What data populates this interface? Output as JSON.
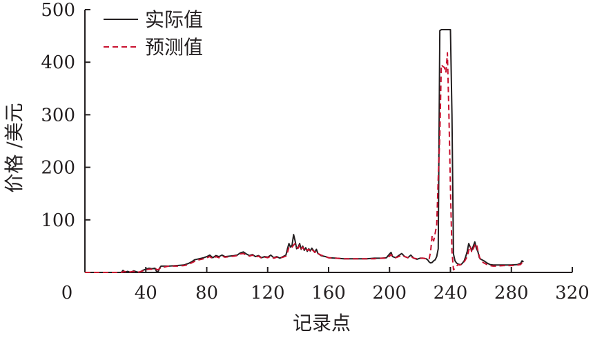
{
  "chart_data": {
    "type": "line",
    "title": "",
    "xlabel": "记录点",
    "ylabel": "价格 /美元",
    "xlim": [
      0,
      320
    ],
    "ylim": [
      0,
      500
    ],
    "xticks": [
      {
        "value": 0,
        "label": "0"
      },
      {
        "value": 40,
        "label": "40"
      },
      {
        "value": 80,
        "label": "80"
      },
      {
        "value": 120,
        "label": "120"
      },
      {
        "value": 160,
        "label": "160"
      },
      {
        "value": 200,
        "label": "200"
      },
      {
        "value": 240,
        "label": "240"
      },
      {
        "value": 280,
        "label": "280"
      },
      {
        "value": 320,
        "label": "320"
      }
    ],
    "yticks": [
      {
        "value": 100,
        "label": "100"
      },
      {
        "value": 200,
        "label": "200"
      },
      {
        "value": 300,
        "label": "300"
      },
      {
        "value": 400,
        "label": "400"
      },
      {
        "value": 500,
        "label": "500"
      }
    ],
    "grid": false,
    "legend_position": "top-left",
    "series": [
      {
        "name": "实际值",
        "color": "#231f20",
        "dash": "solid",
        "points": [
          [
            0,
            0
          ],
          [
            10,
            0
          ],
          [
            20,
            0
          ],
          [
            24,
            0
          ],
          [
            25,
            4
          ],
          [
            26,
            0
          ],
          [
            28,
            2
          ],
          [
            30,
            0
          ],
          [
            32,
            3
          ],
          [
            34,
            1
          ],
          [
            36,
            0
          ],
          [
            38,
            4
          ],
          [
            40,
            6
          ],
          [
            42,
            8
          ],
          [
            44,
            7
          ],
          [
            46,
            8
          ],
          [
            47,
            2
          ],
          [
            48,
            1
          ],
          [
            49,
            8
          ],
          [
            50,
            12
          ],
          [
            55,
            12
          ],
          [
            60,
            13
          ],
          [
            65,
            14
          ],
          [
            68,
            17
          ],
          [
            70,
            20
          ],
          [
            72,
            24
          ],
          [
            75,
            26
          ],
          [
            78,
            28
          ],
          [
            80,
            30
          ],
          [
            82,
            33
          ],
          [
            84,
            28
          ],
          [
            86,
            32
          ],
          [
            88,
            30
          ],
          [
            90,
            33
          ],
          [
            92,
            30
          ],
          [
            95,
            31
          ],
          [
            98,
            32
          ],
          [
            100,
            33
          ],
          [
            102,
            37
          ],
          [
            104,
            39
          ],
          [
            106,
            35
          ],
          [
            108,
            32
          ],
          [
            110,
            34
          ],
          [
            112,
            30
          ],
          [
            114,
            32
          ],
          [
            116,
            28
          ],
          [
            118,
            30
          ],
          [
            120,
            29
          ],
          [
            122,
            33
          ],
          [
            124,
            28
          ],
          [
            126,
            30
          ],
          [
            128,
            27
          ],
          [
            130,
            30
          ],
          [
            132,
            33
          ],
          [
            133,
            45
          ],
          [
            134,
            55
          ],
          [
            135,
            48
          ],
          [
            136,
            52
          ],
          [
            137,
            72
          ],
          [
            138,
            60
          ],
          [
            139,
            45
          ],
          [
            140,
            48
          ],
          [
            141,
            55
          ],
          [
            142,
            44
          ],
          [
            143,
            50
          ],
          [
            144,
            42
          ],
          [
            145,
            47
          ],
          [
            146,
            40
          ],
          [
            147,
            45
          ],
          [
            148,
            41
          ],
          [
            149,
            46
          ],
          [
            150,
            42
          ],
          [
            151,
            38
          ],
          [
            152,
            44
          ],
          [
            153,
            36
          ],
          [
            155,
            32
          ],
          [
            158,
            30
          ],
          [
            160,
            28
          ],
          [
            165,
            27
          ],
          [
            170,
            26
          ],
          [
            175,
            26
          ],
          [
            180,
            26
          ],
          [
            185,
            26
          ],
          [
            190,
            27
          ],
          [
            195,
            27
          ],
          [
            198,
            28
          ],
          [
            200,
            35
          ],
          [
            201,
            38
          ],
          [
            202,
            30
          ],
          [
            204,
            28
          ],
          [
            206,
            32
          ],
          [
            208,
            36
          ],
          [
            210,
            30
          ],
          [
            212,
            28
          ],
          [
            214,
            33
          ],
          [
            216,
            27
          ],
          [
            218,
            25
          ],
          [
            220,
            27
          ],
          [
            222,
            27
          ],
          [
            224,
            26
          ],
          [
            225,
            24
          ],
          [
            226,
            20
          ],
          [
            227,
            18
          ],
          [
            228,
            19
          ],
          [
            229,
            22
          ],
          [
            230,
            24
          ],
          [
            231,
            30
          ],
          [
            232,
            45
          ],
          [
            233,
            460
          ],
          [
            234,
            462
          ],
          [
            235,
            462
          ],
          [
            236,
            462
          ],
          [
            237,
            462
          ],
          [
            238,
            462
          ],
          [
            239,
            462
          ],
          [
            240,
            462
          ],
          [
            241,
            300
          ],
          [
            242,
            35
          ],
          [
            243,
            22
          ],
          [
            244,
            18
          ],
          [
            245,
            16
          ],
          [
            246,
            15
          ],
          [
            247,
            15
          ],
          [
            248,
            18
          ],
          [
            249,
            22
          ],
          [
            250,
            30
          ],
          [
            251,
            40
          ],
          [
            252,
            55
          ],
          [
            253,
            48
          ],
          [
            254,
            42
          ],
          [
            255,
            50
          ],
          [
            256,
            58
          ],
          [
            257,
            46
          ],
          [
            258,
            40
          ],
          [
            259,
            28
          ],
          [
            260,
            25
          ],
          [
            262,
            22
          ],
          [
            264,
            18
          ],
          [
            266,
            15
          ],
          [
            268,
            14
          ],
          [
            270,
            14
          ],
          [
            275,
            14
          ],
          [
            280,
            14
          ],
          [
            284,
            15
          ],
          [
            286,
            17
          ],
          [
            287,
            22
          ],
          [
            288,
            20
          ]
        ]
      },
      {
        "name": "预测值",
        "color": "#c8102e",
        "dash": "dashed",
        "points": [
          [
            0,
            0
          ],
          [
            10,
            0
          ],
          [
            20,
            0
          ],
          [
            24,
            0
          ],
          [
            26,
            2
          ],
          [
            28,
            0
          ],
          [
            30,
            1
          ],
          [
            32,
            2
          ],
          [
            34,
            0
          ],
          [
            36,
            1
          ],
          [
            38,
            3
          ],
          [
            40,
            5
          ],
          [
            42,
            6
          ],
          [
            44,
            6
          ],
          [
            46,
            7
          ],
          [
            48,
            5
          ],
          [
            50,
            9
          ],
          [
            55,
            12
          ],
          [
            60,
            12
          ],
          [
            65,
            13
          ],
          [
            68,
            15
          ],
          [
            70,
            18
          ],
          [
            72,
            21
          ],
          [
            75,
            24
          ],
          [
            78,
            26
          ],
          [
            80,
            28
          ],
          [
            82,
            30
          ],
          [
            84,
            26
          ],
          [
            86,
            30
          ],
          [
            88,
            28
          ],
          [
            90,
            31
          ],
          [
            92,
            29
          ],
          [
            95,
            30
          ],
          [
            98,
            31
          ],
          [
            100,
            32
          ],
          [
            102,
            35
          ],
          [
            104,
            36
          ],
          [
            106,
            33
          ],
          [
            108,
            31
          ],
          [
            110,
            33
          ],
          [
            112,
            29
          ],
          [
            114,
            31
          ],
          [
            116,
            27
          ],
          [
            118,
            29
          ],
          [
            120,
            28
          ],
          [
            122,
            31
          ],
          [
            124,
            27
          ],
          [
            126,
            29
          ],
          [
            128,
            27
          ],
          [
            130,
            29
          ],
          [
            132,
            31
          ],
          [
            133,
            38
          ],
          [
            134,
            48
          ],
          [
            135,
            46
          ],
          [
            136,
            48
          ],
          [
            137,
            52
          ],
          [
            138,
            55
          ],
          [
            139,
            48
          ],
          [
            140,
            46
          ],
          [
            141,
            52
          ],
          [
            142,
            45
          ],
          [
            143,
            48
          ],
          [
            144,
            43
          ],
          [
            145,
            46
          ],
          [
            146,
            42
          ],
          [
            147,
            44
          ],
          [
            148,
            40
          ],
          [
            149,
            44
          ],
          [
            150,
            41
          ],
          [
            151,
            38
          ],
          [
            152,
            41
          ],
          [
            153,
            36
          ],
          [
            155,
            33
          ],
          [
            158,
            30
          ],
          [
            160,
            28
          ],
          [
            165,
            27
          ],
          [
            170,
            26
          ],
          [
            175,
            26
          ],
          [
            180,
            26
          ],
          [
            185,
            26
          ],
          [
            190,
            26
          ],
          [
            195,
            27
          ],
          [
            198,
            27
          ],
          [
            200,
            31
          ],
          [
            201,
            34
          ],
          [
            202,
            30
          ],
          [
            204,
            28
          ],
          [
            206,
            30
          ],
          [
            208,
            33
          ],
          [
            210,
            30
          ],
          [
            212,
            28
          ],
          [
            214,
            30
          ],
          [
            216,
            27
          ],
          [
            218,
            26
          ],
          [
            220,
            27
          ],
          [
            222,
            27
          ],
          [
            224,
            26
          ],
          [
            226,
            25
          ],
          [
            227,
            40
          ],
          [
            228,
            70
          ],
          [
            229,
            60
          ],
          [
            230,
            75
          ],
          [
            231,
            90
          ],
          [
            232,
            180
          ],
          [
            233,
            260
          ],
          [
            234,
            395
          ],
          [
            235,
            392
          ],
          [
            236,
            390
          ],
          [
            237,
            380
          ],
          [
            238,
            418
          ],
          [
            239,
            300
          ],
          [
            240,
            160
          ],
          [
            241,
            40
          ],
          [
            242,
            5
          ],
          [
            243,
            8
          ],
          [
            244,
            12
          ],
          [
            245,
            15
          ],
          [
            246,
            14
          ],
          [
            248,
            16
          ],
          [
            249,
            20
          ],
          [
            250,
            25
          ],
          [
            251,
            30
          ],
          [
            252,
            42
          ],
          [
            253,
            50
          ],
          [
            254,
            38
          ],
          [
            255,
            45
          ],
          [
            256,
            52
          ],
          [
            257,
            55
          ],
          [
            258,
            42
          ],
          [
            259,
            30
          ],
          [
            260,
            22
          ],
          [
            262,
            18
          ],
          [
            264,
            15
          ],
          [
            266,
            13
          ],
          [
            268,
            12
          ],
          [
            270,
            12
          ],
          [
            275,
            13
          ],
          [
            280,
            13
          ],
          [
            284,
            14
          ],
          [
            286,
            15
          ],
          [
            287,
            18
          ],
          [
            288,
            17
          ]
        ]
      }
    ]
  }
}
